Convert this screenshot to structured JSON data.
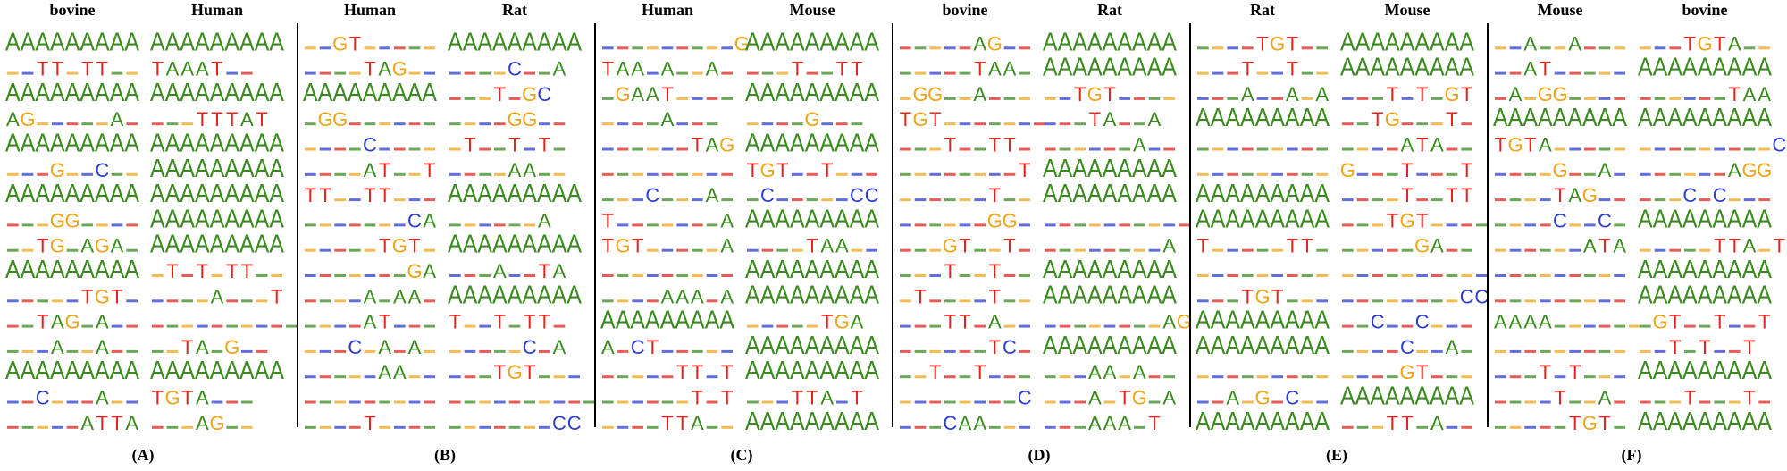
{
  "colors": {
    "A": "#3a8a1f",
    "C": "#2d3ecf",
    "G": "#f0a418",
    "T": "#e0241f"
  },
  "panels": [
    {
      "label": "(A)",
      "headers": [
        "bovine",
        "Human"
      ],
      "rows": [
        [
          "AAAAAAAAA",
          "AAAAAAAAA"
        ],
        [
          "..TT.TT..",
          "TAAAT.."
        ],
        [
          "AAAAAAAAA",
          "AAAAAAAAA"
        ],
        [
          "AG.....A.",
          "...TTTAT"
        ],
        [
          "AAAAAAAAA",
          "AAAAAAAAA"
        ],
        [
          "...G..C..",
          "AAAAAAAAA"
        ],
        [
          "AAAAAAAAA",
          "AAAAAAAAA"
        ],
        [
          "...GG....",
          "AAAAAAAAA"
        ],
        [
          "..TG.AGA.",
          "AAAAAAAAA"
        ],
        [
          "AAAAAAAAA",
          ".T.T.TT.."
        ],
        [
          ".....TGT.",
          "....A...T"
        ],
        [
          "..TAG.A..",
          ".........."
        ],
        [
          "...A..A..",
          "..TA.G.."
        ],
        [
          "AAAAAAAAA",
          "AAAAAAAAA"
        ],
        [
          "..C...A..",
          "TGTA..."
        ],
        [
          ".....ATTA",
          "...AG.."
        ]
      ]
    },
    {
      "label": "(B)",
      "headers": [
        "Human",
        "Rat"
      ],
      "rows": [
        [
          "..GT.....",
          "AAAAAAAAA"
        ],
        [
          "....TAG..",
          "....C..A"
        ],
        [
          "AAAAAAAAA",
          "...T.GC"
        ],
        [
          ".GG......",
          "....GG.."
        ],
        [
          "....C....",
          ".T..T.T."
        ],
        [
          "....AT..T",
          "....AA.."
        ],
        [
          "TT..TT...",
          "AAAAAAAAA"
        ],
        [
          ".......CA",
          "......A"
        ],
        [
          ".....TGT.",
          "AAAAAAAAA"
        ],
        [
          ".......GA",
          "...A..TA"
        ],
        [
          "....A.AA.",
          "AAAAAAAAA"
        ],
        [
          "....AT...",
          "T..T.TT."
        ],
        [
          "...C.A.A.",
          ".....C.A"
        ],
        [
          ".....AA..",
          "...TGT..."
        ],
        [
          ".........",
          ".........."
        ],
        [
          "....T....",
          ".......CC"
        ]
      ]
    },
    {
      "label": "(C)",
      "headers": [
        "Human",
        "Mouse"
      ],
      "rows": [
        [
          ".........G",
          "AAAAAAAAA"
        ],
        [
          "TAA.A..A.",
          "...T..TT"
        ],
        [
          ".GAAT....",
          "AAAAAAAAA"
        ],
        [
          "....A...",
          "....G..."
        ],
        [
          "......TAG",
          "AAAAAAAAA"
        ],
        [
          ".........",
          "TGT..T..."
        ],
        [
          "...C...A.",
          ".C.....CC"
        ],
        [
          "T.......A",
          "AAAAAAAAA"
        ],
        [
          "TGT.....A",
          "....TAA.."
        ],
        [
          ".........",
          "AAAAAAAAA"
        ],
        [
          "....AAA.A",
          "AAAAAAAAA"
        ],
        [
          "AAAAAAAAA",
          ".....TGA"
        ],
        [
          "A.CT.....",
          "AAAAAAAAA"
        ],
        [
          ".....TT.T",
          "AAAAAAAAA"
        ],
        [
          "......T.T",
          "...TTA.T"
        ],
        [
          "....TTA..",
          "AAAAAAAAA"
        ]
      ]
    },
    {
      "label": "(D)",
      "headers": [
        "bovine",
        "Rat"
      ],
      "rows": [
        [
          ".....AG..",
          "AAAAAAAAA"
        ],
        [
          ".....TAA.",
          "AAAAAAAAA"
        ],
        [
          ".GG..A...",
          "..TGT...."
        ],
        [
          "TGT.......",
          "...TA..A"
        ],
        [
          "...T..TT.",
          "......A.."
        ],
        [
          "........T",
          "AAAAAAAAA"
        ],
        [
          "......T..",
          "AAAAAAAAA"
        ],
        [
          "......GG.",
          ".........."
        ],
        [
          "...GT..T.",
          "........A"
        ],
        [
          "...T..T..",
          "AAAAAAAAA"
        ],
        [
          ".T....T..",
          "AAAAAAAAA"
        ],
        [
          "...TT.A..",
          "........AG"
        ],
        [
          "......TC.",
          "AAAAAAAAA"
        ],
        [
          "..T..T...",
          "...AA.A.."
        ],
        [
          "........C",
          "...A.TG.A"
        ],
        [
          "...CAA...",
          "...AAA.T"
        ]
      ]
    },
    {
      "label": "(E)",
      "headers": [
        "Rat",
        "Mouse"
      ],
      "rows": [
        [
          "....TGT..",
          "AAAAAAAAA"
        ],
        [
          "...T..T..",
          "AAAAAAAAA"
        ],
        [
          "...A..A.A",
          "...T.T.GT"
        ],
        [
          "AAAAAAAAA",
          "..TG...T."
        ],
        [
          ".........",
          "....ATA.."
        ],
        [
          ".........",
          "G...T...T"
        ],
        [
          "AAAAAAAAA",
          "....T..TT"
        ],
        [
          "AAAAAAAAA",
          "...TGT...."
        ],
        [
          "T.....TT.",
          ".....GA.."
        ],
        [
          ".........",
          ".........."
        ],
        [
          "...TGT...",
          "........CC"
        ],
        [
          "AAAAAAAAA",
          "..C..C..."
        ],
        [
          "AAAAAAAAA",
          "....C..A."
        ],
        [
          ".........",
          "....GT..."
        ],
        [
          "..A.G.C..",
          "AAAAAAAAA"
        ],
        [
          "AAAAAAAAA",
          "...TT.A.."
        ]
      ]
    },
    {
      "label": "(F)",
      "headers": [
        "Mouse",
        "bovine"
      ],
      "rows": [
        [
          "..A..A...",
          "...TGTA.."
        ],
        [
          "..AT.....",
          "AAAAAAAAA"
        ],
        [
          ".A.GG....",
          "......TAA"
        ],
        [
          "AAAAAAAAA",
          "AAAAAAAAA"
        ],
        [
          "TGTA.....",
          ".........C"
        ],
        [
          "....G..A.",
          "......AGG"
        ],
        [
          "....TAG..",
          "...C.C..."
        ],
        [
          "....C..C.",
          "AAAAAAAAA"
        ],
        [
          "......ATA",
          ".....TTA.T"
        ],
        [
          ".........",
          "AAAAAAAAA"
        ],
        [
          ".........",
          "AAAAAAAAA"
        ],
        [
          "AAAA......",
          ".GT..T..T"
        ],
        [
          ".........",
          "..T.T..T"
        ],
        [
          "...T.T...",
          "AAAAAAAAA"
        ],
        [
          "....T..A.",
          "...T...T."
        ],
        [
          ".....TGT.",
          "AAAAAAAAA"
        ]
      ]
    }
  ]
}
